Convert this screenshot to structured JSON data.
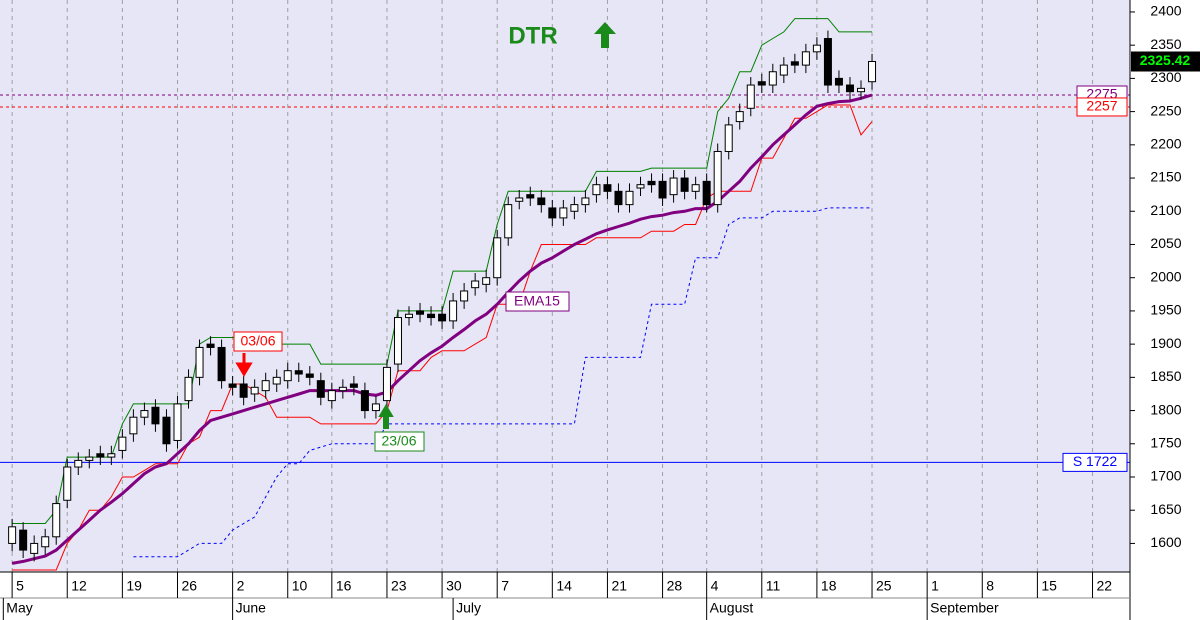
{
  "chart_data": {
    "type": "candlestick",
    "title": "DTR",
    "ylim": [
      1557,
      2418
    ],
    "yticks": [
      1600,
      1650,
      1700,
      1750,
      1800,
      1850,
      1900,
      1950,
      2000,
      2050,
      2100,
      2150,
      2200,
      2250,
      2300,
      2350,
      2400
    ],
    "xlim": [
      -1.1,
      101.4
    ],
    "xticks": [
      {
        "value": 0,
        "label": "5"
      },
      {
        "value": 5,
        "label": "12"
      },
      {
        "value": 10,
        "label": "19"
      },
      {
        "value": 15,
        "label": "26"
      },
      {
        "value": 20,
        "label": "2"
      },
      {
        "value": 25,
        "label": "10"
      },
      {
        "value": 29,
        "label": "16"
      },
      {
        "value": 34,
        "label": "23"
      },
      {
        "value": 39,
        "label": "30"
      },
      {
        "value": 44,
        "label": "7"
      },
      {
        "value": 49,
        "label": "14"
      },
      {
        "value": 54,
        "label": "21"
      },
      {
        "value": 59,
        "label": "28"
      },
      {
        "value": 63,
        "label": "4"
      },
      {
        "value": 68,
        "label": "11"
      },
      {
        "value": 73,
        "label": "18"
      },
      {
        "value": 78,
        "label": "25"
      },
      {
        "value": 83,
        "label": "1"
      },
      {
        "value": 88,
        "label": "8"
      },
      {
        "value": 93,
        "label": "15"
      },
      {
        "value": 98,
        "label": "22"
      }
    ],
    "months": [
      {
        "value": -0.8,
        "label": "May"
      },
      {
        "value": 20,
        "label": "June"
      },
      {
        "value": 40,
        "label": "July"
      },
      {
        "value": 63,
        "label": "August"
      },
      {
        "value": 83,
        "label": "September"
      }
    ],
    "grid": true,
    "candles": {
      "up_color": "#ffffff",
      "down_color": "#000000",
      "open": [
        1600,
        1620,
        1585,
        1595,
        1610,
        1665,
        1715,
        1725,
        1735,
        1730,
        1740,
        1765,
        1790,
        1805,
        1790,
        1755,
        1815,
        1850,
        1900,
        1895,
        1840,
        1840,
        1825,
        1830,
        1840,
        1845,
        1860,
        1855,
        1845,
        1815,
        1830,
        1840,
        1830,
        1800,
        1815,
        1870,
        1940,
        1950,
        1945,
        1945,
        1935,
        1965,
        1985,
        1990,
        2000,
        2060,
        2115,
        2125,
        2120,
        2105,
        2090,
        2100,
        2110,
        2125,
        2140,
        2130,
        2110,
        2135,
        2145,
        2145,
        2125,
        2150,
        2130,
        2145,
        2110,
        2190,
        2235,
        2255,
        2295,
        2290,
        2305,
        2325,
        2320,
        2340,
        2360,
        2300,
        2290,
        2280,
        2295
      ],
      "high": [
        1637,
        1632,
        1612,
        1622,
        1672,
        1727,
        1737,
        1742,
        1747,
        1747,
        1772,
        1802,
        1812,
        1817,
        1802,
        1822,
        1862,
        1907,
        1912,
        1907,
        1852,
        1852,
        1847,
        1857,
        1862,
        1872,
        1872,
        1867,
        1857,
        1842,
        1847,
        1852,
        1842,
        1822,
        1877,
        1952,
        1957,
        1962,
        1957,
        1957,
        1977,
        1992,
        2007,
        2012,
        2072,
        2122,
        2132,
        2137,
        2132,
        2117,
        2117,
        2122,
        2132,
        2152,
        2152,
        2142,
        2142,
        2152,
        2157,
        2157,
        2162,
        2162,
        2152,
        2157,
        2202,
        2242,
        2262,
        2302,
        2307,
        2322,
        2332,
        2337,
        2352,
        2362,
        2372,
        2312,
        2302,
        2297,
        2337
      ],
      "low": [
        1588,
        1578,
        1573,
        1583,
        1598,
        1653,
        1703,
        1713,
        1718,
        1718,
        1728,
        1753,
        1778,
        1768,
        1738,
        1743,
        1803,
        1838,
        1883,
        1833,
        1823,
        1808,
        1813,
        1818,
        1828,
        1833,
        1843,
        1838,
        1808,
        1803,
        1818,
        1823,
        1788,
        1788,
        1803,
        1858,
        1928,
        1933,
        1928,
        1923,
        1923,
        1953,
        1973,
        1978,
        1988,
        2048,
        2103,
        2108,
        2098,
        2078,
        2078,
        2088,
        2098,
        2113,
        2118,
        2098,
        2098,
        2123,
        2128,
        2108,
        2113,
        2118,
        2118,
        2098,
        2098,
        2178,
        2223,
        2243,
        2278,
        2278,
        2293,
        2308,
        2308,
        2328,
        2278,
        2278,
        2268,
        2268,
        2283
      ],
      "close": [
        1625,
        1590,
        1600,
        1610,
        1660,
        1715,
        1725,
        1730,
        1730,
        1735,
        1760,
        1790,
        1800,
        1780,
        1750,
        1810,
        1850,
        1895,
        1895,
        1845,
        1835,
        1820,
        1835,
        1845,
        1850,
        1860,
        1855,
        1850,
        1820,
        1830,
        1835,
        1835,
        1800,
        1810,
        1865,
        1940,
        1945,
        1945,
        1940,
        1935,
        1965,
        1980,
        1995,
        2000,
        2060,
        2110,
        2120,
        2120,
        2110,
        2090,
        2105,
        2110,
        2120,
        2140,
        2130,
        2110,
        2130,
        2140,
        2140,
        2120,
        2150,
        2130,
        2140,
        2110,
        2190,
        2230,
        2250,
        2290,
        2290,
        2310,
        2320,
        2320,
        2340,
        2350,
        2290,
        2290,
        2280,
        2285,
        2325.42
      ]
    },
    "series": [
      {
        "color": "#008000",
        "width": 1,
        "dash": false,
        "values": [
          1630,
          1630,
          1630,
          1630,
          1650,
          1730,
          1730,
          1730,
          1730,
          1730,
          1780,
          1810,
          1810,
          1810,
          1810,
          1810,
          1810,
          1900,
          1910,
          1910,
          1910,
          1910,
          1910,
          1910,
          1900,
          1900,
          1900,
          1900,
          1870,
          1870,
          1870,
          1870,
          1870,
          1870,
          1870,
          1950,
          1950,
          1950,
          1950,
          1950,
          2010,
          2010,
          2010,
          2010,
          2080,
          2130,
          2130,
          2130,
          2130,
          2130,
          2130,
          2130,
          2130,
          2160,
          2160,
          2160,
          2160,
          2160,
          2165,
          2165,
          2165,
          2165,
          2165,
          2165,
          2250,
          2270,
          2310,
          2310,
          2350,
          2360,
          2370,
          2390,
          2390,
          2390,
          2390,
          2370,
          2370,
          2370,
          2370
        ]
      },
      {
        "color": "#ff0000",
        "width": 1,
        "dash": false,
        "values": [
          1560,
          1560,
          1560,
          1560,
          1560,
          1600,
          1620,
          1650,
          1650,
          1670,
          1700,
          1700,
          1710,
          1720,
          1720,
          1720,
          1750,
          1760,
          1800,
          1800,
          1840,
          1840,
          1830,
          1820,
          1790,
          1790,
          1790,
          1790,
          1780,
          1780,
          1780,
          1780,
          1780,
          1780,
          1800,
          1860,
          1860,
          1860,
          1880,
          1890,
          1890,
          1890,
          1900,
          1910,
          1960,
          1960,
          1960,
          2010,
          2050,
          2050,
          2050,
          2050,
          2050,
          2060,
          2060,
          2060,
          2060,
          2060,
          2070,
          2070,
          2070,
          2080,
          2080,
          2120,
          2130,
          2130,
          2130,
          2130,
          2180,
          2180,
          2210,
          2240,
          2240,
          2250,
          2260,
          2260,
          2260,
          2215,
          2235
        ]
      },
      {
        "name": "EMA15",
        "color": "#800080",
        "width": 3,
        "dash": false,
        "values": [
          1570,
          1573,
          1577,
          1581,
          1590,
          1605,
          1620,
          1635,
          1650,
          1662,
          1675,
          1690,
          1705,
          1715,
          1720,
          1735,
          1750,
          1770,
          1785,
          1790,
          1795,
          1800,
          1805,
          1810,
          1815,
          1820,
          1825,
          1830,
          1830,
          1830,
          1830,
          1830,
          1825,
          1823,
          1828,
          1845,
          1860,
          1875,
          1887,
          1897,
          1910,
          1922,
          1935,
          1945,
          1960,
          1978,
          1995,
          2010,
          2022,
          2030,
          2040,
          2050,
          2058,
          2066,
          2072,
          2077,
          2082,
          2088,
          2092,
          2094,
          2098,
          2100,
          2104,
          2104,
          2115,
          2130,
          2145,
          2165,
          2182,
          2200,
          2215,
          2230,
          2245,
          2258,
          2262,
          2265,
          2266,
          2270,
          2275
        ]
      },
      {
        "color": "#0000ff",
        "width": 1,
        "dash": true,
        "values": [
          null,
          null,
          null,
          null,
          null,
          null,
          null,
          null,
          null,
          null,
          null,
          1580,
          1580,
          1580,
          1580,
          1580,
          1590,
          1600,
          1600,
          1600,
          1620,
          1630,
          1640,
          1670,
          1700,
          1720,
          1720,
          1740,
          1745,
          1750,
          1750,
          1750,
          1750,
          1750,
          1780,
          1780,
          1780,
          1780,
          1780,
          1780,
          1780,
          1780,
          1780,
          1780,
          1780,
          1780,
          1780,
          1780,
          1780,
          1780,
          1780,
          1780,
          1880,
          1880,
          1880,
          1880,
          1880,
          1880,
          1960,
          1960,
          1960,
          1960,
          2030,
          2030,
          2030,
          2080,
          2090,
          2090,
          2090,
          2100,
          2100,
          2100,
          2100,
          2100,
          2105,
          2105,
          2105,
          2105,
          2105
        ]
      }
    ],
    "levels": [
      {
        "value": 2275,
        "color": "#800080",
        "dash": true
      },
      {
        "value": 2257,
        "color": "#ff0000",
        "dash": true
      },
      {
        "value": {
          "value": 1722,
          "label": "S 1722"
        },
        "color": "#0000ff",
        "dash": false
      }
    ],
    "annotations": [
      "03/06",
      "23/06"
    ]
  }
}
